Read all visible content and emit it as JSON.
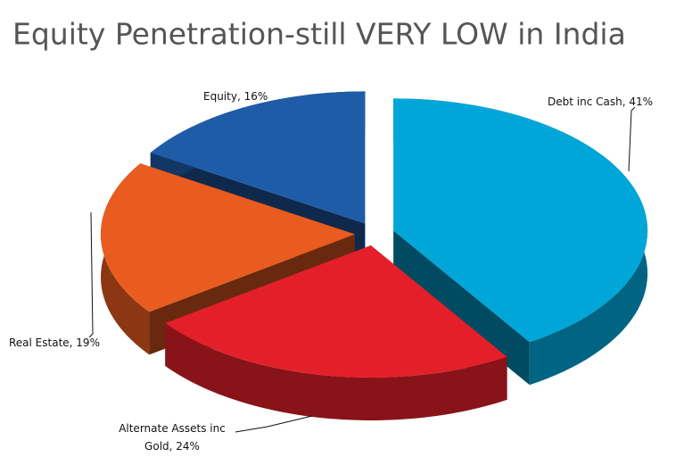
{
  "chart_data": {
    "type": "pie3d",
    "title": "Equity Penetration-still VERY LOW in India",
    "categories": [
      "Debt inc Cash, 41%",
      "Alternate Assets inc Gold, 24%",
      "Real Estate, 19%",
      "Equity, 16%"
    ],
    "values": [
      41,
      24,
      19,
      16
    ],
    "colors": [
      "#00a6d8",
      "#e3202a",
      "#e95b1f",
      "#1f5ca8"
    ]
  }
}
